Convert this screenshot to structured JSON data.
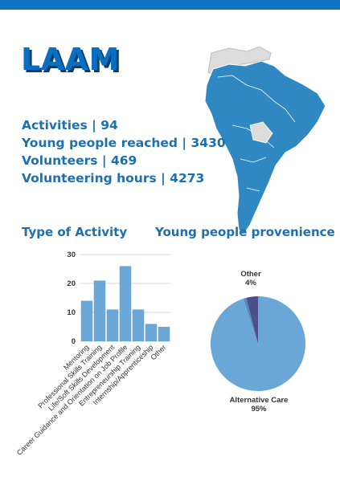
{
  "region": "LAAM",
  "stats": [
    {
      "label": "Activities  |",
      "value": "94"
    },
    {
      "label": "Young people reached |",
      "value": "3430"
    },
    {
      "label": "Volunteers |",
      "value": "469"
    },
    {
      "label": "Volunteering hours |",
      "value": "4273"
    }
  ],
  "sections": {
    "activity_title": "Type of Activity",
    "provenience_title": "Young people provenience"
  },
  "colors": {
    "accent": "#0e73c2",
    "bar": "#6aa6d6",
    "pie_main": "#6aa6d6",
    "pie_other": "#4b4f8c",
    "map_fill": "#2f88c1",
    "map_land": "#dcdcdc"
  },
  "chart_data": [
    {
      "type": "bar",
      "title": "Type of Activity",
      "categories": [
        "Mentoring",
        "Professional Skills Training",
        "Life/Soft Skills Development",
        "Career Guidance and Orientation on Job Profile",
        "Entrepreneurship Training",
        "Internship/Apprenticeship",
        "Other"
      ],
      "values": [
        14,
        21,
        11,
        26,
        11,
        6,
        5
      ],
      "ylim": [
        0,
        30
      ],
      "yticks": [
        0,
        10,
        20,
        30
      ],
      "grid": true
    },
    {
      "type": "pie",
      "title": "Young people provenience",
      "slices": [
        {
          "label": "Alternative Care",
          "value": 95,
          "pct_label": "95%"
        },
        {
          "label": "Other",
          "value": 4,
          "pct_label": "4%"
        },
        {
          "label": "",
          "value": 1,
          "pct_label": ""
        }
      ]
    }
  ]
}
